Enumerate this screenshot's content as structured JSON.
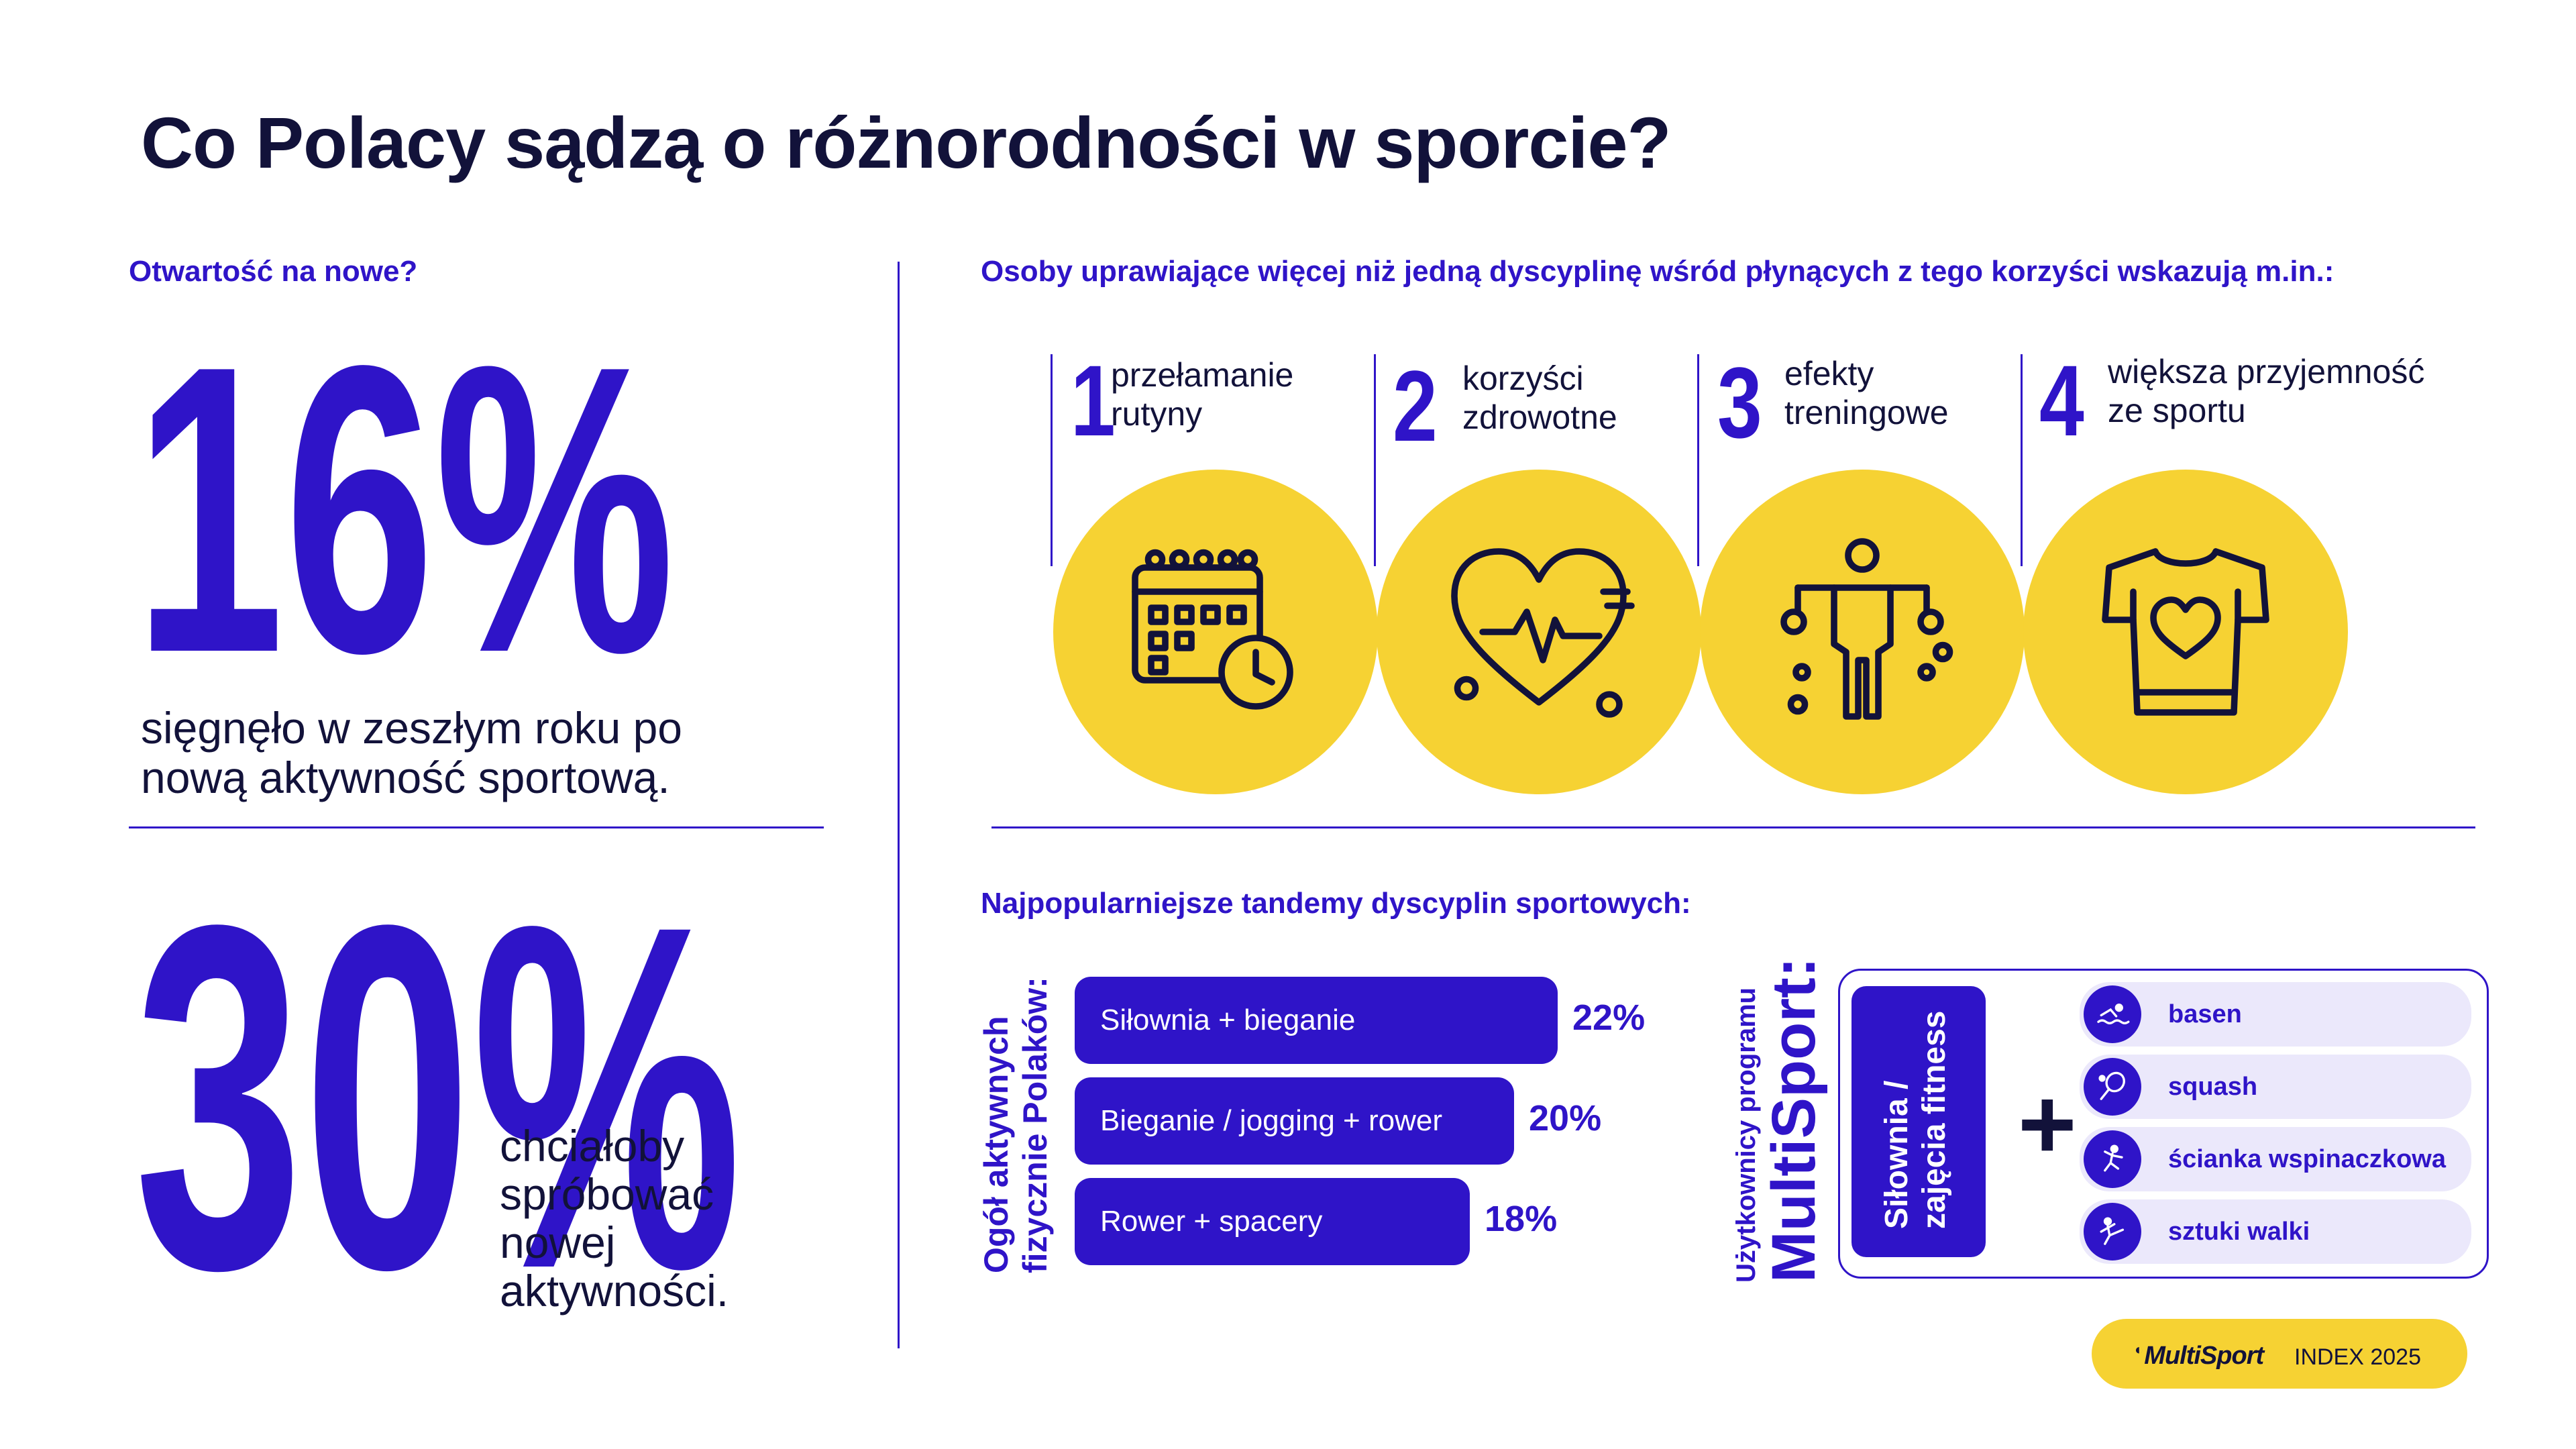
{
  "title": "Co Polacy sądzą o różnorodności w sporcie?",
  "left": {
    "label": "Otwartość na nowe?",
    "stat1": {
      "value": "16%",
      "text_line1": "sięgnęło w zeszłym roku po",
      "text_line2": "nową aktywność sportową."
    },
    "stat2": {
      "value": "30%",
      "text_lines": [
        "chciałoby",
        "spróbować",
        "nowej",
        "aktywności."
      ]
    }
  },
  "benefits": {
    "label": "Osoby uprawiające więcej niż jedną dyscyplinę wśród płynących z tego korzyści wskazują m.in.:",
    "items": [
      {
        "num": "1",
        "line1": "przełamanie",
        "line2": "rutyny",
        "icon": "calendar-clock-icon"
      },
      {
        "num": "2",
        "line1": "korzyści",
        "line2": "zdrowotne",
        "icon": "heart-pulse-icon"
      },
      {
        "num": "3",
        "line1": "efekty",
        "line2": "treningowe",
        "icon": "person-training-icon"
      },
      {
        "num": "4",
        "line1": "większa przyjemność",
        "line2": "ze sportu",
        "icon": "tshirt-heart-icon"
      }
    ]
  },
  "tandems": {
    "label": "Najpopularniejsze tandemy dyscyplin sportowych:",
    "general_label_line1": "Ogół aktywnych",
    "general_label_line2": "fizycznie Polaków:",
    "bars": [
      {
        "label": "Siłownia + bieganie",
        "value": "22%",
        "pct": 22
      },
      {
        "label": "Bieganie / jogging + rower",
        "value": "20%",
        "pct": 20
      },
      {
        "label": "Rower + spacery",
        "value": "18%",
        "pct": 18
      }
    ],
    "multisport_label_line1": "Użytkownicy programu",
    "multisport_label_line2": "MultiSport:",
    "base_line1": "Siłownia /",
    "base_line2": "zajęcia fitness",
    "plus": "+",
    "pills": [
      {
        "label": "basen",
        "icon": "swimming-icon"
      },
      {
        "label": "squash",
        "icon": "racket-icon"
      },
      {
        "label": "ścianka wspinaczkowa",
        "icon": "climbing-icon"
      },
      {
        "label": "sztuki walki",
        "icon": "martial-arts-icon"
      }
    ]
  },
  "footer": {
    "brand": "MultiSport",
    "index": "INDEX 2025"
  },
  "colors": {
    "violet": "#2f14c8",
    "navy": "#12123a",
    "yellow": "#f6d233",
    "pill": "#ebe8fb"
  }
}
